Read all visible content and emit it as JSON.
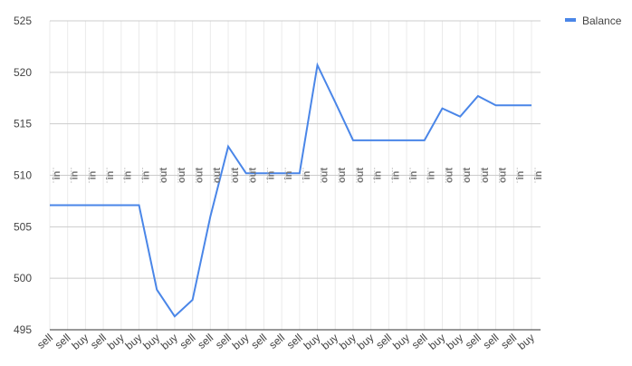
{
  "chart_data": {
    "type": "line",
    "categories": [
      "sell",
      "sell",
      "buy",
      "sell",
      "buy",
      "buy",
      "buy",
      "buy",
      "sell",
      "sell",
      "sell",
      "buy",
      "sell",
      "sell",
      "sell",
      "buy",
      "buy",
      "buy",
      "buy",
      "sell",
      "buy",
      "sell",
      "buy",
      "buy",
      "sell",
      "sell",
      "sell",
      "buy"
    ],
    "annotations": [
      "in",
      "in",
      "in",
      "in",
      "in",
      "in",
      "out",
      "out",
      "out",
      "out",
      "out",
      "out",
      "in",
      "in",
      "in",
      "out",
      "out",
      "out",
      "in",
      "in",
      "in",
      "in",
      "out",
      "out",
      "out",
      "out",
      "in",
      "in"
    ],
    "series": [
      {
        "name": "Balance",
        "color": "#4a86e8",
        "values": [
          507.1,
          507.1,
          507.1,
          507.1,
          507.1,
          507.1,
          498.9,
          496.3,
          497.9,
          506.0,
          512.8,
          510.2,
          510.2,
          510.2,
          510.2,
          520.7,
          517.1,
          513.4,
          513.4,
          513.4,
          513.4,
          513.4,
          516.5,
          515.7,
          517.7,
          516.8,
          516.8,
          516.8
        ]
      }
    ],
    "ylim": [
      495,
      525
    ],
    "yticks": [
      495,
      500,
      505,
      510,
      515,
      520,
      525
    ],
    "grid": true,
    "legend": "top-right"
  }
}
